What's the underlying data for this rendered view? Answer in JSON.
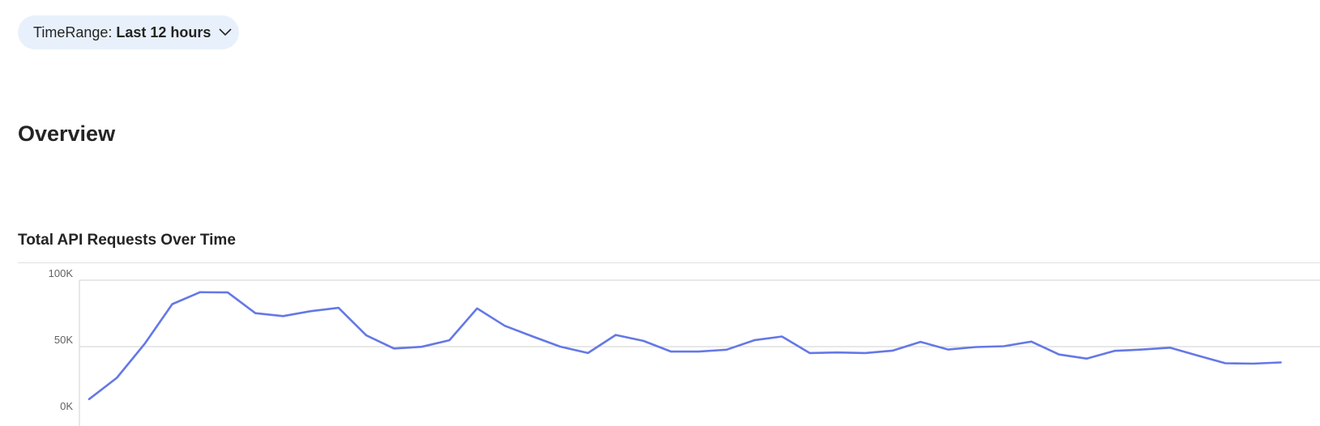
{
  "filter": {
    "label": "TimeRange:",
    "value": "Last 12 hours"
  },
  "page": {
    "heading": "Overview"
  },
  "chart_data": {
    "type": "line",
    "title": "Total API Requests Over Time",
    "xlabel": "",
    "ylabel": "",
    "ylim": [
      0,
      100000
    ],
    "yticks": [
      {
        "value": 0,
        "label": "0K"
      },
      {
        "value": 50000,
        "label": "50K"
      },
      {
        "value": 100000,
        "label": "100K"
      }
    ],
    "grid": true,
    "series": [
      {
        "color": "#6478e6",
        "values": [
          10500,
          26500,
          52000,
          82000,
          91000,
          90800,
          75200,
          73000,
          76700,
          79200,
          58500,
          48600,
          49900,
          54800,
          78800,
          65700,
          57700,
          50000,
          45200,
          58800,
          54300,
          46300,
          46300,
          47700,
          54800,
          57600,
          45200,
          45600,
          45200,
          47000,
          53600,
          47800,
          49700,
          50300,
          53800,
          44100,
          41000,
          46800,
          47800,
          49200,
          43300,
          37500,
          37200,
          38100
        ]
      }
    ]
  }
}
